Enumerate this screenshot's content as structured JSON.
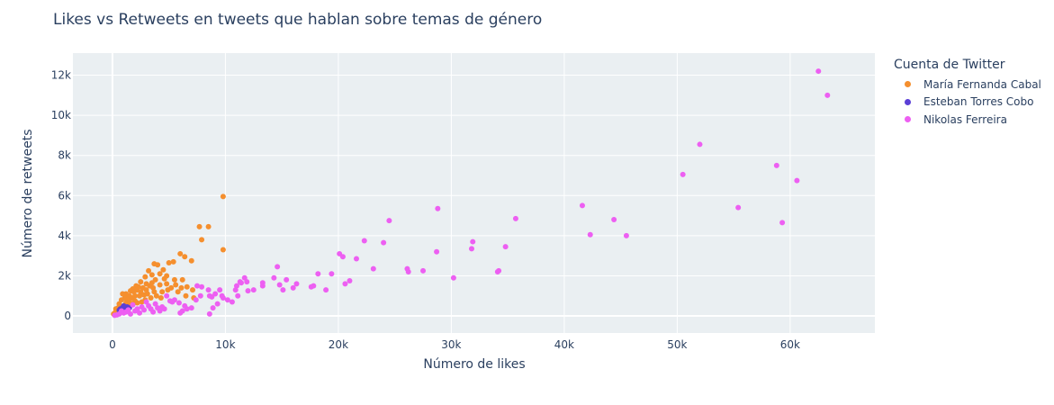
{
  "chart_data": {
    "type": "scatter",
    "title": "Likes vs Retweets en tweets que hablan sobre temas de género",
    "xlabel": "Número de likes",
    "ylabel": "Número de retweets",
    "xlim": [
      -3500,
      67500
    ],
    "ylim": [
      -850,
      13100
    ],
    "x_ticks": [
      0,
      10000,
      20000,
      30000,
      40000,
      50000,
      60000
    ],
    "x_tick_labels": [
      "0",
      "10k",
      "20k",
      "30k",
      "40k",
      "50k",
      "60k"
    ],
    "y_ticks": [
      0,
      2000,
      4000,
      6000,
      8000,
      10000,
      12000
    ],
    "y_tick_labels": [
      "0",
      "2k",
      "4k",
      "6k",
      "8k",
      "10k",
      "12k"
    ],
    "grid": true,
    "legend_title": "Cuenta de Twitter",
    "legend_position": "right",
    "series": [
      {
        "name": "María Fernanda Cabal",
        "color": "#f58f2e",
        "points": [
          [
            9800,
            5950
          ],
          [
            7700,
            4450
          ],
          [
            8500,
            4450
          ],
          [
            7900,
            3800
          ],
          [
            9800,
            3300
          ],
          [
            6000,
            3100
          ],
          [
            6400,
            2950
          ],
          [
            7000,
            2750
          ],
          [
            3700,
            2600
          ],
          [
            4000,
            2550
          ],
          [
            5000,
            2650
          ],
          [
            5400,
            2700
          ],
          [
            4500,
            2300
          ],
          [
            3200,
            2250
          ],
          [
            2900,
            1950
          ],
          [
            3500,
            2050
          ],
          [
            4200,
            2100
          ],
          [
            4800,
            2000
          ],
          [
            5500,
            1800
          ],
          [
            6200,
            1800
          ],
          [
            3800,
            1800
          ],
          [
            2500,
            1700
          ],
          [
            3000,
            1600
          ],
          [
            2100,
            1500
          ],
          [
            3300,
            1500
          ],
          [
            2700,
            1400
          ],
          [
            1800,
            1350
          ],
          [
            2200,
            1300
          ],
          [
            1600,
            1250
          ],
          [
            1200,
            1100
          ],
          [
            900,
            1100
          ],
          [
            2500,
            1200
          ],
          [
            1500,
            1000
          ],
          [
            1100,
            900
          ],
          [
            3000,
            1300
          ],
          [
            2000,
            1000
          ],
          [
            1700,
            900
          ],
          [
            1300,
            800
          ],
          [
            800,
            800
          ],
          [
            2400,
            1000
          ],
          [
            3600,
            1400
          ],
          [
            4200,
            1550
          ],
          [
            4800,
            1600
          ],
          [
            5600,
            1550
          ],
          [
            6100,
            1400
          ],
          [
            6600,
            1450
          ],
          [
            7100,
            1300
          ],
          [
            5800,
            1200
          ],
          [
            6500,
            1000
          ],
          [
            7200,
            900
          ],
          [
            4900,
            1300
          ],
          [
            4400,
            1200
          ],
          [
            3900,
            1000
          ],
          [
            3400,
            900
          ],
          [
            2900,
            800
          ],
          [
            2600,
            700
          ],
          [
            2200,
            650
          ],
          [
            1800,
            600
          ],
          [
            1400,
            550
          ],
          [
            1000,
            500
          ],
          [
            700,
            450
          ],
          [
            500,
            400
          ],
          [
            300,
            350
          ],
          [
            600,
            600
          ],
          [
            400,
            250
          ],
          [
            200,
            150
          ],
          [
            100,
            100
          ],
          [
            1200,
            650
          ],
          [
            2000,
            750
          ],
          [
            3100,
            1100
          ],
          [
            3700,
            1200
          ],
          [
            4300,
            900
          ],
          [
            1500,
            750
          ],
          [
            2800,
            1050
          ],
          [
            1100,
            400
          ],
          [
            1900,
            1200
          ],
          [
            3500,
            1650
          ],
          [
            4600,
            1850
          ],
          [
            5200,
            1400
          ],
          [
            2300,
            1450
          ]
        ]
      },
      {
        "name": "Esteban Torres Cobo",
        "color": "#5b3fd6",
        "points": [
          [
            700,
            350
          ],
          [
            900,
            420
          ],
          [
            1100,
            380
          ],
          [
            1300,
            450
          ],
          [
            800,
            300
          ],
          [
            1500,
            400
          ],
          [
            1000,
            500
          ],
          [
            600,
            280
          ],
          [
            1200,
            320
          ],
          [
            1400,
            350
          ]
        ]
      },
      {
        "name": "Nikolas Ferreira",
        "color": "#ed5ff2",
        "points": [
          [
            62500,
            12200
          ],
          [
            63300,
            11000
          ],
          [
            52000,
            8550
          ],
          [
            50500,
            7050
          ],
          [
            58800,
            7500
          ],
          [
            60600,
            6750
          ],
          [
            41600,
            5500
          ],
          [
            44400,
            4800
          ],
          [
            55400,
            5400
          ],
          [
            59300,
            4650
          ],
          [
            42300,
            4050
          ],
          [
            45500,
            4000
          ],
          [
            35700,
            4850
          ],
          [
            28800,
            5350
          ],
          [
            24500,
            4750
          ],
          [
            34800,
            3450
          ],
          [
            31900,
            3700
          ],
          [
            31800,
            3350
          ],
          [
            22300,
            3750
          ],
          [
            24000,
            3650
          ],
          [
            20100,
            3100
          ],
          [
            20400,
            2950
          ],
          [
            21600,
            2850
          ],
          [
            28700,
            3200
          ],
          [
            27500,
            2250
          ],
          [
            26100,
            2350
          ],
          [
            26200,
            2200
          ],
          [
            23100,
            2350
          ],
          [
            34200,
            2250
          ],
          [
            34100,
            2200
          ],
          [
            30200,
            1900
          ],
          [
            19400,
            2100
          ],
          [
            18200,
            2100
          ],
          [
            21000,
            1750
          ],
          [
            20600,
            1600
          ],
          [
            18900,
            1300
          ],
          [
            17800,
            1500
          ],
          [
            17600,
            1450
          ],
          [
            16300,
            1600
          ],
          [
            16000,
            1400
          ],
          [
            15400,
            1800
          ],
          [
            14800,
            1550
          ],
          [
            14600,
            2450
          ],
          [
            15100,
            1300
          ],
          [
            14300,
            1900
          ],
          [
            13300,
            1650
          ],
          [
            13300,
            1500
          ],
          [
            12000,
            1250
          ],
          [
            11900,
            1700
          ],
          [
            11700,
            1900
          ],
          [
            11400,
            1650
          ],
          [
            11300,
            1700
          ],
          [
            11000,
            1500
          ],
          [
            11100,
            1000
          ],
          [
            10900,
            1300
          ],
          [
            10600,
            700
          ],
          [
            10200,
            800
          ],
          [
            9800,
            900
          ],
          [
            9500,
            1300
          ],
          [
            9700,
            1000
          ],
          [
            9100,
            1100
          ],
          [
            8800,
            950
          ],
          [
            8600,
            1000
          ],
          [
            8500,
            1300
          ],
          [
            7900,
            1450
          ],
          [
            7800,
            1000
          ],
          [
            7400,
            800
          ],
          [
            7000,
            400
          ],
          [
            6600,
            350
          ],
          [
            6400,
            500
          ],
          [
            6200,
            250
          ],
          [
            6000,
            150
          ],
          [
            5900,
            650
          ],
          [
            5500,
            800
          ],
          [
            5300,
            700
          ],
          [
            5100,
            750
          ],
          [
            4800,
            1000
          ],
          [
            4600,
            350
          ],
          [
            4400,
            450
          ],
          [
            4200,
            250
          ],
          [
            4000,
            400
          ],
          [
            3800,
            600
          ],
          [
            3600,
            200
          ],
          [
            3400,
            350
          ],
          [
            3200,
            500
          ],
          [
            3000,
            700
          ],
          [
            2800,
            300
          ],
          [
            2600,
            450
          ],
          [
            2400,
            150
          ],
          [
            2200,
            350
          ],
          [
            2000,
            250
          ],
          [
            1800,
            550
          ],
          [
            1600,
            100
          ],
          [
            1400,
            300
          ],
          [
            1200,
            200
          ],
          [
            1000,
            150
          ],
          [
            800,
            250
          ],
          [
            600,
            100
          ],
          [
            400,
            50
          ],
          [
            200,
            30
          ],
          [
            8600,
            100
          ],
          [
            8900,
            400
          ],
          [
            9300,
            600
          ],
          [
            7500,
            1500
          ],
          [
            12500,
            1300
          ]
        ]
      }
    ]
  }
}
